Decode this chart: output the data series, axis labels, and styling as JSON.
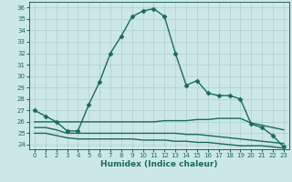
{
  "xlabel": "Humidex (Indice chaleur)",
  "ylabel": "",
  "background_color": "#cce8e4",
  "grid_color": "#aacfca",
  "line_color": "#1a6b5a",
  "x_ticks": [
    0,
    1,
    2,
    3,
    4,
    5,
    6,
    7,
    8,
    9,
    10,
    11,
    12,
    13,
    14,
    15,
    16,
    17,
    18,
    19,
    20,
    21,
    22,
    23
  ],
  "y_ticks": [
    24,
    25,
    26,
    27,
    28,
    29,
    30,
    31,
    32,
    33,
    34,
    35,
    36
  ],
  "ylim": [
    23.6,
    36.5
  ],
  "xlim": [
    -0.5,
    23.5
  ],
  "series": [
    {
      "x": [
        0,
        1,
        2,
        3,
        4,
        5,
        6,
        7,
        8,
        9,
        10,
        11,
        12,
        13,
        14,
        15,
        16,
        17,
        18,
        19,
        20,
        21,
        22,
        23
      ],
      "y": [
        27,
        26.5,
        26,
        25.2,
        25.2,
        27.5,
        29.5,
        32,
        33.5,
        35.2,
        35.7,
        35.9,
        35.2,
        32,
        29.2,
        29.6,
        28.5,
        28.3,
        28.3,
        28.0,
        25.8,
        25.5,
        24.8,
        23.8
      ],
      "color": "#1a6b5a",
      "linewidth": 1.0,
      "marker": "D",
      "markersize": 2.5
    },
    {
      "x": [
        0,
        1,
        2,
        3,
        4,
        5,
        6,
        7,
        8,
        9,
        10,
        11,
        12,
        13,
        14,
        15,
        16,
        17,
        18,
        19,
        20,
        21,
        22,
        23
      ],
      "y": [
        26.0,
        26.0,
        26.0,
        26.0,
        26.0,
        26.0,
        26.0,
        26.0,
        26.0,
        26.0,
        26.0,
        26.0,
        26.1,
        26.1,
        26.1,
        26.2,
        26.2,
        26.3,
        26.3,
        26.3,
        25.9,
        25.7,
        25.5,
        25.3
      ],
      "color": "#1a6b5a",
      "linewidth": 1.0,
      "marker": null,
      "markersize": 0
    },
    {
      "x": [
        0,
        1,
        2,
        3,
        4,
        5,
        6,
        7,
        8,
        9,
        10,
        11,
        12,
        13,
        14,
        15,
        16,
        17,
        18,
        19,
        20,
        21,
        22,
        23
      ],
      "y": [
        25.5,
        25.5,
        25.3,
        25.0,
        25.0,
        25.0,
        25.0,
        25.0,
        25.0,
        25.0,
        25.0,
        25.0,
        25.0,
        25.0,
        24.9,
        24.9,
        24.8,
        24.7,
        24.6,
        24.5,
        24.4,
        24.3,
        24.2,
        24.1
      ],
      "color": "#1a6b5a",
      "linewidth": 1.0,
      "marker": null,
      "markersize": 0
    },
    {
      "x": [
        0,
        1,
        2,
        3,
        4,
        5,
        6,
        7,
        8,
        9,
        10,
        11,
        12,
        13,
        14,
        15,
        16,
        17,
        18,
        19,
        20,
        21,
        22,
        23
      ],
      "y": [
        25.0,
        25.0,
        24.8,
        24.6,
        24.5,
        24.5,
        24.5,
        24.5,
        24.5,
        24.5,
        24.4,
        24.4,
        24.4,
        24.3,
        24.3,
        24.2,
        24.2,
        24.1,
        24.0,
        23.9,
        23.9,
        23.9,
        23.8,
        23.7
      ],
      "color": "#1a6b5a",
      "linewidth": 1.0,
      "marker": null,
      "markersize": 0
    }
  ]
}
